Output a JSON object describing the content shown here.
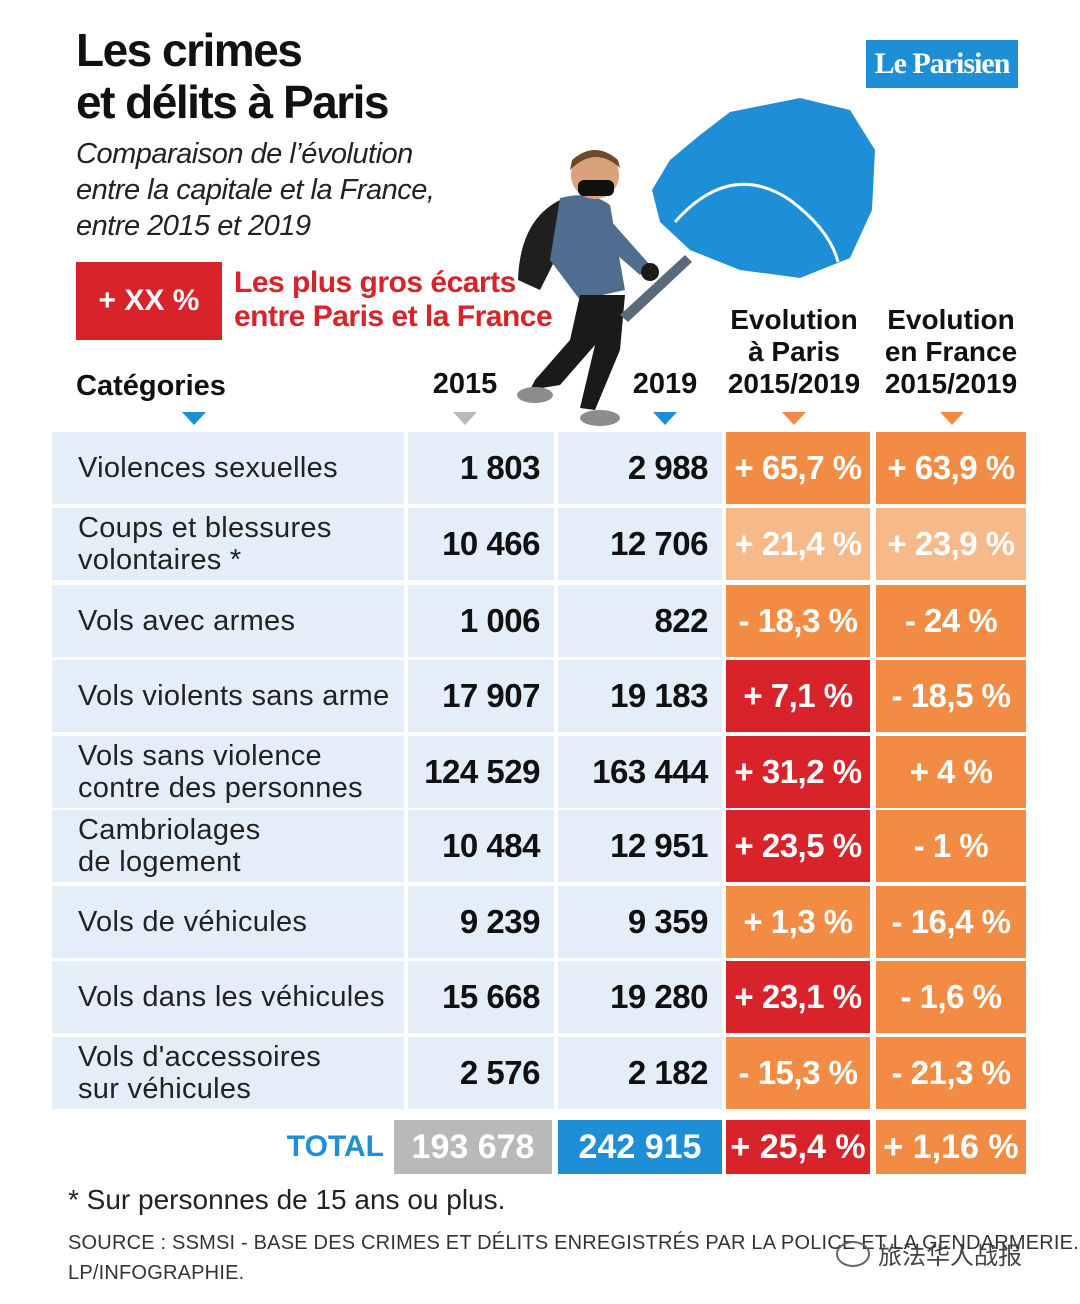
{
  "header": {
    "title": "Les crimes\net délits à Paris",
    "subtitle": "Comparaison de l’évolution\nentre la capitale et la France,\nentre 2015 et 2019",
    "logo": "Le Parisien"
  },
  "legend": {
    "box_label": "+ XX %",
    "text": "Les plus gros écarts\nentre Paris et la France"
  },
  "columns": {
    "categories": "Catégories",
    "y2015": "2015",
    "y2019": "2019",
    "evo_paris": "Evolution\nà Paris\n2015/2019",
    "evo_france": "Evolution\nen France\n2015/2019"
  },
  "colors": {
    "highlight_red": "#d8232a",
    "orange": "#f28c44",
    "light_orange": "#f6b98a",
    "blue": "#1e8fd6",
    "grey": "#b9b9b9",
    "row_blue": "#e3eef8"
  },
  "chart_data": {
    "type": "table",
    "title": "Les crimes et délits à Paris",
    "columns": [
      "Catégories",
      "2015",
      "2019",
      "Evolution à Paris 2015/2019",
      "Evolution en France 2015/2019"
    ],
    "rows": [
      {
        "label": "Violences sexuelles",
        "v2015": "1 803",
        "v2019": "2 988",
        "paris": "+ 65,7 %",
        "france": "+ 63,9 %",
        "paris_highlight": false
      },
      {
        "label": "Coups et blessures\nvolontaires *",
        "v2015": "10 466",
        "v2019": "12 706",
        "paris": "+ 21,4 %",
        "france": "+ 23,9 %",
        "paris_highlight": false
      },
      {
        "label": "Vols avec armes",
        "v2015": "1 006",
        "v2019": "822",
        "paris": "- 18,3 %",
        "france": "- 24 %",
        "paris_highlight": false
      },
      {
        "label": "Vols violents sans arme",
        "v2015": "17 907",
        "v2019": "19 183",
        "paris": "+ 7,1 %",
        "france": "- 18,5 %",
        "paris_highlight": true
      },
      {
        "label": "Vols sans violence\ncontre des personnes",
        "v2015": "124 529",
        "v2019": "163 444",
        "paris": "+ 31,2 %",
        "france": "+ 4 %",
        "paris_highlight": true
      },
      {
        "label": "Cambriolages\nde logement",
        "v2015": "10 484",
        "v2019": "12 951",
        "paris": "+ 23,5 %",
        "france": "- 1 %",
        "paris_highlight": true
      },
      {
        "label": "Vols de véhicules",
        "v2015": "9 239",
        "v2019": "9 359",
        "paris": "+ 1,3 %",
        "france": "- 16,4 %",
        "paris_highlight": false
      },
      {
        "label": "Vols dans les véhicules",
        "v2015": "15 668",
        "v2019": "19 280",
        "paris": "+ 23,1 %",
        "france": "- 1,6 %",
        "paris_highlight": true
      },
      {
        "label": "Vols d'accessoires\nsur véhicules",
        "v2015": "2 576",
        "v2019": "2 182",
        "paris": "- 15,3 %",
        "france": "- 21,3 %",
        "paris_highlight": false
      }
    ],
    "total": {
      "label": "TOTAL",
      "v2015": "193 678",
      "v2019": "242 915",
      "paris": "+ 25,4 %",
      "france": "+ 1,16 %"
    }
  },
  "footer": {
    "footnote": "* Sur personnes de 15 ans ou plus.",
    "source": "SOURCE : SSMSI - BASE DES CRIMES ET DÉLITS ENREGISTRÉS PAR LA POLICE ET LA GENDARMERIE.\nLP/INFOGRAPHIE.",
    "watermark": "旅法华人战报"
  }
}
